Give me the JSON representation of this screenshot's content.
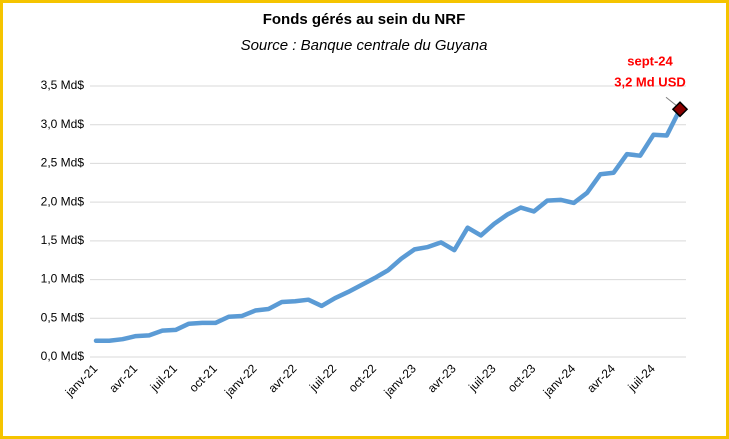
{
  "chart_data": {
    "type": "line",
    "title": "Fonds gérés au sein du NRF",
    "subtitle": "Source : Banque centrale du Guyana",
    "categories": [
      "janv-21",
      null,
      null,
      "avr-21",
      null,
      null,
      "juil-21",
      null,
      null,
      "oct-21",
      null,
      null,
      "janv-22",
      null,
      null,
      "avr-22",
      null,
      null,
      "juil-22",
      null,
      null,
      "oct-22",
      null,
      null,
      "janv-23",
      null,
      null,
      "avr-23",
      null,
      null,
      "juil-23",
      null,
      null,
      "oct-23",
      null,
      null,
      "janv-24",
      null,
      null,
      "avr-24",
      null,
      null,
      "juil-24",
      null,
      null
    ],
    "values": [
      0.21,
      0.21,
      0.23,
      0.27,
      0.28,
      0.34,
      0.35,
      0.43,
      0.44,
      0.44,
      0.52,
      0.53,
      0.6,
      0.62,
      0.71,
      0.72,
      0.74,
      0.66,
      0.76,
      0.84,
      0.93,
      1.02,
      1.12,
      1.27,
      1.39,
      1.42,
      1.48,
      1.38,
      1.67,
      1.57,
      1.72,
      1.84,
      1.93,
      1.88,
      2.02,
      2.03,
      1.99,
      2.12,
      2.36,
      2.38,
      2.62,
      2.6,
      2.87,
      2.86,
      3.2
    ],
    "color": "#5b9bd5",
    "ylim": [
      0,
      3.5
    ],
    "yticks": [
      {
        "value": 0,
        "label": "0,0 Md$"
      },
      {
        "value": 0.5,
        "label": "0,5 Md$"
      },
      {
        "value": 1,
        "label": "1,0 Md$"
      },
      {
        "value": 1.5,
        "label": "1,5 Md$"
      },
      {
        "value": 2,
        "label": "2,0 Md$"
      },
      {
        "value": 2.5,
        "label": "2,5 Md$"
      },
      {
        "value": 3,
        "label": "3,0 Md$"
      },
      {
        "value": 3.5,
        "label": "3,5 Md$"
      }
    ],
    "grid": true,
    "annotation": {
      "date": "sept-24",
      "value_label": "3,2 Md USD",
      "color": "#ff0000"
    }
  }
}
